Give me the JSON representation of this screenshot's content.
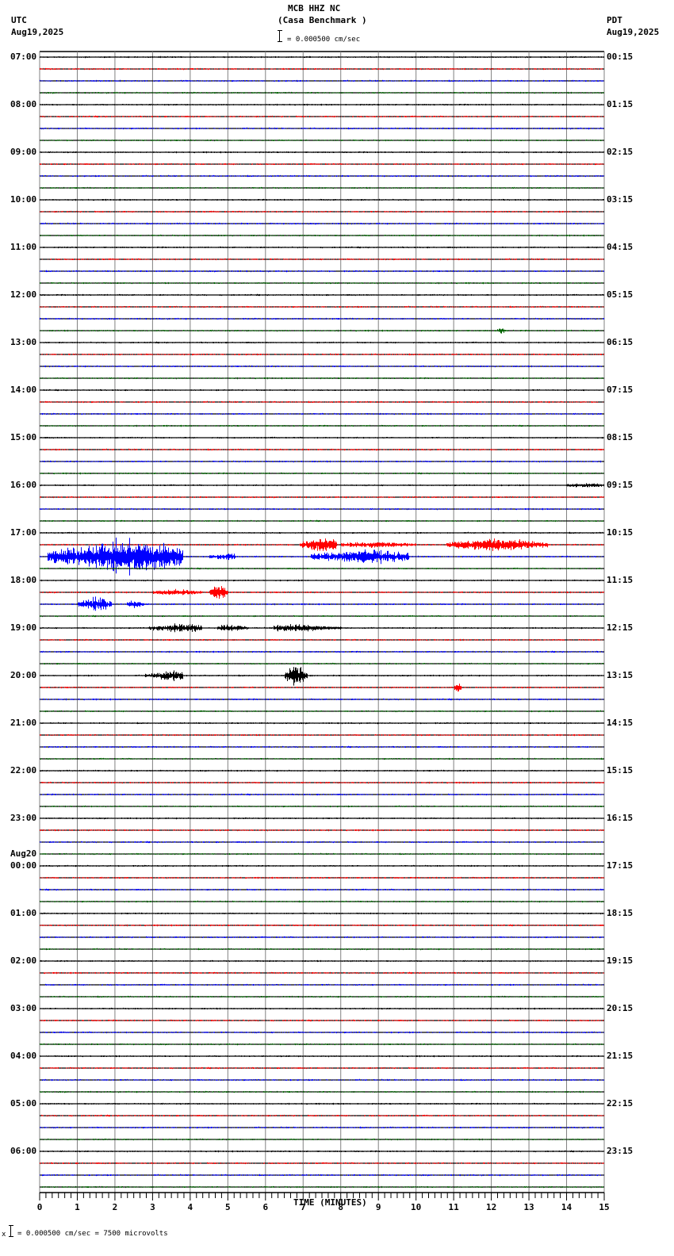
{
  "header": {
    "station": "MCB HHZ NC",
    "location": "(Casa Benchmark )",
    "left_tz": "UTC",
    "left_date": "Aug19,2025",
    "right_tz": "PDT",
    "right_date": "Aug19,2025",
    "scale_text": "= 0.000500 cm/sec"
  },
  "footer": {
    "scale_prefix": "x",
    "scale_text": "= 0.000500 cm/sec =    7500 microvolts"
  },
  "chart_data": {
    "type": "line",
    "title": "MCB HHZ NC (Casa Benchmark )",
    "xlabel": "TIME (MINUTES)",
    "ylabel": "",
    "x_ticks": [
      0,
      1,
      2,
      3,
      4,
      5,
      6,
      7,
      8,
      9,
      10,
      11,
      12,
      13,
      14,
      15
    ],
    "xlim": [
      0,
      15
    ],
    "grid": true,
    "trace_colors": [
      "#000000",
      "#ff0000",
      "#0000ff",
      "#006400"
    ],
    "baseline_color": "#000000",
    "grid_color": "#808080",
    "traces_per_hour": 4,
    "minutes_per_trace": 15,
    "left_labels": [
      {
        "row": 0,
        "text": "07:00"
      },
      {
        "row": 4,
        "text": "08:00"
      },
      {
        "row": 8,
        "text": "09:00"
      },
      {
        "row": 12,
        "text": "10:00"
      },
      {
        "row": 16,
        "text": "11:00"
      },
      {
        "row": 20,
        "text": "12:00"
      },
      {
        "row": 24,
        "text": "13:00"
      },
      {
        "row": 28,
        "text": "14:00"
      },
      {
        "row": 32,
        "text": "15:00"
      },
      {
        "row": 36,
        "text": "16:00"
      },
      {
        "row": 40,
        "text": "17:00"
      },
      {
        "row": 44,
        "text": "18:00"
      },
      {
        "row": 48,
        "text": "19:00"
      },
      {
        "row": 52,
        "text": "20:00"
      },
      {
        "row": 56,
        "text": "21:00"
      },
      {
        "row": 60,
        "text": "22:00"
      },
      {
        "row": 64,
        "text": "23:00"
      },
      {
        "row": 68,
        "text": "00:00",
        "date": "Aug20"
      },
      {
        "row": 72,
        "text": "01:00"
      },
      {
        "row": 76,
        "text": "02:00"
      },
      {
        "row": 80,
        "text": "03:00"
      },
      {
        "row": 84,
        "text": "04:00"
      },
      {
        "row": 88,
        "text": "05:00"
      },
      {
        "row": 92,
        "text": "06:00"
      }
    ],
    "right_labels": [
      {
        "row": 0,
        "text": "00:15"
      },
      {
        "row": 4,
        "text": "01:15"
      },
      {
        "row": 8,
        "text": "02:15"
      },
      {
        "row": 12,
        "text": "03:15"
      },
      {
        "row": 16,
        "text": "04:15"
      },
      {
        "row": 20,
        "text": "05:15"
      },
      {
        "row": 24,
        "text": "06:15"
      },
      {
        "row": 28,
        "text": "07:15"
      },
      {
        "row": 32,
        "text": "08:15"
      },
      {
        "row": 36,
        "text": "09:15"
      },
      {
        "row": 40,
        "text": "10:15"
      },
      {
        "row": 44,
        "text": "11:15"
      },
      {
        "row": 48,
        "text": "12:15"
      },
      {
        "row": 52,
        "text": "13:15"
      },
      {
        "row": 56,
        "text": "14:15"
      },
      {
        "row": 60,
        "text": "15:15"
      },
      {
        "row": 64,
        "text": "16:15"
      },
      {
        "row": 68,
        "text": "17:15"
      },
      {
        "row": 72,
        "text": "18:15"
      },
      {
        "row": 76,
        "text": "19:15"
      },
      {
        "row": 80,
        "text": "20:15"
      },
      {
        "row": 84,
        "text": "21:15"
      },
      {
        "row": 88,
        "text": "22:15"
      },
      {
        "row": 92,
        "text": "23:15"
      }
    ],
    "events": [
      {
        "row": 41,
        "start_min": 6.9,
        "end_min": 7.9,
        "peak_min": 7.55,
        "amp": 9
      },
      {
        "row": 41,
        "start_min": 8.0,
        "end_min": 10.0,
        "peak_min": 8.8,
        "amp": 3
      },
      {
        "row": 41,
        "start_min": 10.8,
        "end_min": 13.5,
        "peak_min": 12.2,
        "amp": 7
      },
      {
        "row": 42,
        "start_min": 0.2,
        "end_min": 3.8,
        "peak_min": 2.35,
        "amp": 20
      },
      {
        "row": 42,
        "start_min": 4.5,
        "end_min": 5.2,
        "peak_min": 5.0,
        "amp": 4
      },
      {
        "row": 42,
        "start_min": 7.2,
        "end_min": 9.8,
        "peak_min": 8.7,
        "amp": 8
      },
      {
        "row": 45,
        "start_min": 3.0,
        "end_min": 4.3,
        "peak_min": 3.6,
        "amp": 3
      },
      {
        "row": 45,
        "start_min": 4.5,
        "end_min": 5.0,
        "peak_min": 4.75,
        "amp": 9
      },
      {
        "row": 46,
        "start_min": 1.0,
        "end_min": 1.9,
        "peak_min": 1.5,
        "amp": 8
      },
      {
        "row": 46,
        "start_min": 2.3,
        "end_min": 2.8,
        "peak_min": 2.5,
        "amp": 4
      },
      {
        "row": 48,
        "start_min": 2.9,
        "end_min": 4.3,
        "peak_min": 3.7,
        "amp": 5
      },
      {
        "row": 48,
        "start_min": 4.7,
        "end_min": 5.5,
        "peak_min": 5.0,
        "amp": 4
      },
      {
        "row": 48,
        "start_min": 6.2,
        "end_min": 8.0,
        "peak_min": 6.7,
        "amp": 4
      },
      {
        "row": 52,
        "start_min": 2.8,
        "end_min": 3.8,
        "peak_min": 3.6,
        "amp": 6
      },
      {
        "row": 52,
        "start_min": 6.5,
        "end_min": 7.1,
        "peak_min": 6.8,
        "amp": 12
      },
      {
        "row": 53,
        "start_min": 11.0,
        "end_min": 11.2,
        "peak_min": 11.1,
        "amp": 5
      },
      {
        "row": 23,
        "start_min": 12.15,
        "end_min": 12.35,
        "peak_min": 12.25,
        "amp": 3
      },
      {
        "row": 36,
        "start_min": 14.0,
        "end_min": 15.0,
        "peak_min": 14.5,
        "amp": 2
      }
    ]
  }
}
